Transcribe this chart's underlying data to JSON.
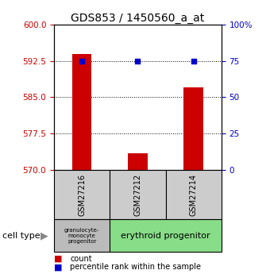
{
  "title": "GDS853 / 1450560_a_at",
  "samples": [
    "GSM27216",
    "GSM27212",
    "GSM27214"
  ],
  "bar_values": [
    594.0,
    573.5,
    587.0
  ],
  "bar_baseline": 570,
  "percentile_values": [
    75,
    75,
    75
  ],
  "left_ylim": [
    570,
    600
  ],
  "left_yticks": [
    570,
    577.5,
    585,
    592.5,
    600
  ],
  "right_ylim": [
    0,
    100
  ],
  "right_yticks": [
    0,
    25,
    50,
    75,
    100
  ],
  "right_yticklabels": [
    "0",
    "25",
    "50",
    "75",
    "100%"
  ],
  "bar_color": "#cc0000",
  "dot_color": "#0000cc",
  "cell_type_0_label": "granulocyte-\nmonocyte\nprogenitor",
  "cell_type_12_label": "erythroid progenitor",
  "cell_type_0_color": "#bbbbbb",
  "cell_type_12_color": "#88dd88",
  "xtick_bg_color": "#cccccc",
  "cell_type_label": "cell type",
  "legend_count_label": "count",
  "legend_pct_label": "percentile rank within the sample",
  "left_tick_color": "#cc0000",
  "right_tick_color": "#0000cc",
  "background_color": "#ffffff",
  "title_fontsize": 10
}
